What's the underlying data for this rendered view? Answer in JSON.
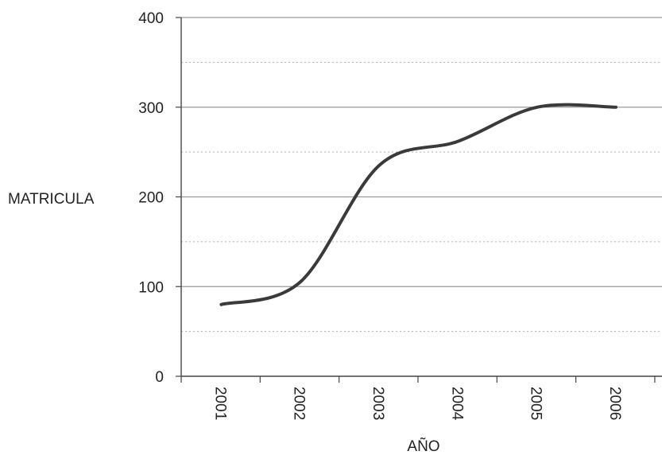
{
  "chart_data": {
    "type": "line",
    "title": "",
    "xlabel": "AÑO",
    "ylabel": "MATRICULA",
    "categories": [
      "2001",
      "2002",
      "2003",
      "2004",
      "2005",
      "2006"
    ],
    "series": [
      {
        "values": [
          80,
          105,
          235,
          262,
          300,
          300
        ]
      }
    ],
    "ylim": [
      0,
      400
    ],
    "yticks": [
      0,
      100,
      200,
      300,
      400
    ],
    "minor_gridlines": [
      50,
      150,
      250,
      350
    ],
    "grid": true,
    "smooth": true,
    "legend": "none",
    "colors": {
      "line": "#3a3a3a",
      "grid": "#9a9a9a",
      "axis": "#444444"
    }
  }
}
